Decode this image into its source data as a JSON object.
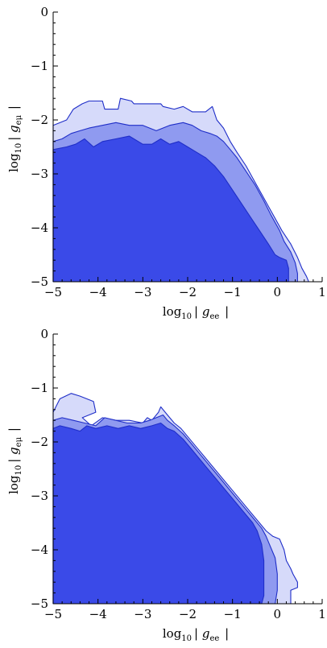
{
  "chart_data": [
    {
      "type": "area",
      "title": "",
      "xlabel": {
        "prefix": "log",
        "sub": "10",
        "var": "g",
        "var_sub": "ee"
      },
      "ylabel": {
        "prefix": "log",
        "sub": "10",
        "var": "g",
        "var_sub": "eμ"
      },
      "xlim": [
        -5,
        1
      ],
      "ylim": [
        -5,
        0
      ],
      "xticks": [
        -5,
        -4,
        -3,
        -2,
        -1,
        0,
        1
      ],
      "yticks": [
        0,
        -1,
        -2,
        -3,
        -4,
        -5
      ],
      "tick_labels_x": [
        "−5",
        "−4",
        "−3",
        "−2",
        "−1",
        "0",
        "1"
      ],
      "tick_labels_y": [
        "0",
        "−1",
        "−2",
        "−3",
        "−4",
        "−5"
      ],
      "colors": {
        "outer": "#d6dafa",
        "middle": "#8f9af0",
        "inner": "#3a4ae8",
        "edge": "#1f2ec8"
      },
      "series": [
        {
          "level": "outer",
          "points": [
            [
              -5,
              -5
            ],
            [
              -5,
              -2.1
            ],
            [
              -4.7,
              -2.0
            ],
            [
              -4.55,
              -1.8
            ],
            [
              -4.35,
              -1.7
            ],
            [
              -4.2,
              -1.65
            ],
            [
              -3.9,
              -1.65
            ],
            [
              -3.85,
              -1.8
            ],
            [
              -3.55,
              -1.8
            ],
            [
              -3.5,
              -1.6
            ],
            [
              -3.25,
              -1.65
            ],
            [
              -3.2,
              -1.7
            ],
            [
              -2.6,
              -1.7
            ],
            [
              -2.55,
              -1.75
            ],
            [
              -2.3,
              -1.8
            ],
            [
              -2.1,
              -1.75
            ],
            [
              -1.9,
              -1.85
            ],
            [
              -1.6,
              -1.85
            ],
            [
              -1.45,
              -1.75
            ],
            [
              -1.35,
              -2.0
            ],
            [
              -1.2,
              -2.15
            ],
            [
              -1.05,
              -2.4
            ],
            [
              -0.9,
              -2.6
            ],
            [
              -0.7,
              -2.85
            ],
            [
              -0.5,
              -3.15
            ],
            [
              -0.3,
              -3.45
            ],
            [
              -0.1,
              -3.75
            ],
            [
              0.1,
              -4.05
            ],
            [
              0.3,
              -4.3
            ],
            [
              0.45,
              -4.55
            ],
            [
              0.55,
              -4.75
            ],
            [
              0.65,
              -4.9
            ],
            [
              0.7,
              -5
            ]
          ]
        },
        {
          "level": "middle",
          "points": [
            [
              -5,
              -5
            ],
            [
              -5,
              -2.4
            ],
            [
              -4.8,
              -2.35
            ],
            [
              -4.6,
              -2.25
            ],
            [
              -4.4,
              -2.2
            ],
            [
              -4.2,
              -2.15
            ],
            [
              -3.9,
              -2.1
            ],
            [
              -3.6,
              -2.05
            ],
            [
              -3.3,
              -2.1
            ],
            [
              -3.0,
              -2.1
            ],
            [
              -2.7,
              -2.2
            ],
            [
              -2.4,
              -2.1
            ],
            [
              -2.1,
              -2.05
            ],
            [
              -1.9,
              -2.1
            ],
            [
              -1.7,
              -2.2
            ],
            [
              -1.5,
              -2.25
            ],
            [
              -1.35,
              -2.3
            ],
            [
              -1.2,
              -2.4
            ],
            [
              -1.05,
              -2.55
            ],
            [
              -0.9,
              -2.7
            ],
            [
              -0.7,
              -2.95
            ],
            [
              -0.5,
              -3.2
            ],
            [
              -0.3,
              -3.5
            ],
            [
              -0.15,
              -3.75
            ],
            [
              0.05,
              -4.05
            ],
            [
              0.15,
              -4.25
            ],
            [
              0.3,
              -4.45
            ],
            [
              0.4,
              -4.65
            ],
            [
              0.45,
              -4.85
            ],
            [
              0.45,
              -5
            ]
          ]
        },
        {
          "level": "inner",
          "points": [
            [
              -5,
              -5
            ],
            [
              -5,
              -2.55
            ],
            [
              -4.7,
              -2.5
            ],
            [
              -4.5,
              -2.45
            ],
            [
              -4.3,
              -2.35
            ],
            [
              -4.1,
              -2.5
            ],
            [
              -3.9,
              -2.4
            ],
            [
              -3.6,
              -2.35
            ],
            [
              -3.3,
              -2.3
            ],
            [
              -3.0,
              -2.45
            ],
            [
              -2.8,
              -2.45
            ],
            [
              -2.6,
              -2.35
            ],
            [
              -2.4,
              -2.45
            ],
            [
              -2.2,
              -2.4
            ],
            [
              -2.0,
              -2.5
            ],
            [
              -1.8,
              -2.6
            ],
            [
              -1.6,
              -2.7
            ],
            [
              -1.4,
              -2.85
            ],
            [
              -1.2,
              -3.05
            ],
            [
              -1.0,
              -3.3
            ],
            [
              -0.8,
              -3.55
            ],
            [
              -0.6,
              -3.8
            ],
            [
              -0.4,
              -4.05
            ],
            [
              -0.2,
              -4.3
            ],
            [
              -0.05,
              -4.5
            ],
            [
              0.05,
              -4.55
            ],
            [
              0.2,
              -4.6
            ],
            [
              0.25,
              -4.75
            ],
            [
              0.25,
              -5
            ]
          ]
        }
      ]
    },
    {
      "type": "area",
      "title": "",
      "xlabel": {
        "prefix": "log",
        "sub": "10",
        "var": "g",
        "var_sub": "ee"
      },
      "ylabel": {
        "prefix": "log",
        "sub": "10",
        "var": "g",
        "var_sub": "eμ"
      },
      "xlim": [
        -5,
        1
      ],
      "ylim": [
        -5,
        0
      ],
      "xticks": [
        -5,
        -4,
        -3,
        -2,
        -1,
        0,
        1
      ],
      "yticks": [
        0,
        -1,
        -2,
        -3,
        -4,
        -5
      ],
      "tick_labels_x": [
        "−5",
        "−4",
        "−3",
        "−2",
        "−1",
        "0",
        "1"
      ],
      "tick_labels_y": [
        "0",
        "−1",
        "−2",
        "−3",
        "−4",
        "−5"
      ],
      "colors": {
        "outer": "#d6dafa",
        "middle": "#8f9af0",
        "inner": "#3a4ae8",
        "edge": "#1f2ec8"
      },
      "series": [
        {
          "level": "outer",
          "points": [
            [
              -5,
              -5
            ],
            [
              -5,
              -1.45
            ],
            [
              -4.85,
              -1.2
            ],
            [
              -4.6,
              -1.1
            ],
            [
              -4.4,
              -1.15
            ],
            [
              -4.1,
              -1.25
            ],
            [
              -4.05,
              -1.45
            ],
            [
              -4.35,
              -1.55
            ],
            [
              -4.15,
              -1.7
            ],
            [
              -3.9,
              -1.55
            ],
            [
              -3.6,
              -1.6
            ],
            [
              -3.3,
              -1.6
            ],
            [
              -3.0,
              -1.65
            ],
            [
              -2.9,
              -1.55
            ],
            [
              -2.8,
              -1.6
            ],
            [
              -2.65,
              -1.45
            ],
            [
              -2.6,
              -1.35
            ],
            [
              -2.45,
              -1.5
            ],
            [
              -2.3,
              -1.65
            ],
            [
              -2.15,
              -1.75
            ],
            [
              -2.0,
              -1.9
            ],
            [
              -1.8,
              -2.1
            ],
            [
              -1.6,
              -2.3
            ],
            [
              -1.4,
              -2.5
            ],
            [
              -1.2,
              -2.7
            ],
            [
              -1.0,
              -2.9
            ],
            [
              -0.8,
              -3.1
            ],
            [
              -0.6,
              -3.3
            ],
            [
              -0.4,
              -3.5
            ],
            [
              -0.25,
              -3.65
            ],
            [
              -0.1,
              -3.75
            ],
            [
              0.05,
              -3.8
            ],
            [
              0.15,
              -4.0
            ],
            [
              0.2,
              -4.2
            ],
            [
              0.3,
              -4.35
            ],
            [
              0.35,
              -4.45
            ],
            [
              0.45,
              -4.6
            ],
            [
              0.45,
              -4.7
            ],
            [
              0.3,
              -4.75
            ],
            [
              0.3,
              -5
            ]
          ]
        },
        {
          "level": "middle",
          "points": [
            [
              -5,
              -5
            ],
            [
              -5,
              -1.6
            ],
            [
              -4.8,
              -1.55
            ],
            [
              -4.55,
              -1.6
            ],
            [
              -4.3,
              -1.65
            ],
            [
              -4.05,
              -1.7
            ],
            [
              -3.85,
              -1.55
            ],
            [
              -3.6,
              -1.6
            ],
            [
              -3.35,
              -1.65
            ],
            [
              -3.05,
              -1.65
            ],
            [
              -2.85,
              -1.6
            ],
            [
              -2.7,
              -1.55
            ],
            [
              -2.55,
              -1.5
            ],
            [
              -2.45,
              -1.6
            ],
            [
              -2.3,
              -1.7
            ],
            [
              -2.1,
              -1.85
            ],
            [
              -1.9,
              -2.05
            ],
            [
              -1.7,
              -2.25
            ],
            [
              -1.5,
              -2.45
            ],
            [
              -1.3,
              -2.65
            ],
            [
              -1.1,
              -2.85
            ],
            [
              -0.9,
              -3.05
            ],
            [
              -0.7,
              -3.25
            ],
            [
              -0.5,
              -3.45
            ],
            [
              -0.35,
              -3.6
            ],
            [
              -0.25,
              -3.75
            ],
            [
              -0.15,
              -3.95
            ],
            [
              -0.05,
              -4.15
            ],
            [
              0.0,
              -4.45
            ],
            [
              0.0,
              -4.75
            ],
            [
              -0.05,
              -5
            ]
          ]
        },
        {
          "level": "inner",
          "points": [
            [
              -5,
              -5
            ],
            [
              -5,
              -1.75
            ],
            [
              -4.85,
              -1.7
            ],
            [
              -4.6,
              -1.75
            ],
            [
              -4.4,
              -1.8
            ],
            [
              -4.25,
              -1.7
            ],
            [
              -4.05,
              -1.75
            ],
            [
              -3.8,
              -1.7
            ],
            [
              -3.55,
              -1.75
            ],
            [
              -3.3,
              -1.7
            ],
            [
              -3.05,
              -1.75
            ],
            [
              -2.8,
              -1.7
            ],
            [
              -2.6,
              -1.65
            ],
            [
              -2.45,
              -1.75
            ],
            [
              -2.3,
              -1.8
            ],
            [
              -2.1,
              -1.95
            ],
            [
              -1.9,
              -2.15
            ],
            [
              -1.7,
              -2.35
            ],
            [
              -1.5,
              -2.55
            ],
            [
              -1.3,
              -2.75
            ],
            [
              -1.1,
              -2.95
            ],
            [
              -0.9,
              -3.15
            ],
            [
              -0.7,
              -3.35
            ],
            [
              -0.55,
              -3.5
            ],
            [
              -0.45,
              -3.65
            ],
            [
              -0.35,
              -3.9
            ],
            [
              -0.3,
              -4.2
            ],
            [
              -0.3,
              -4.55
            ],
            [
              -0.3,
              -4.85
            ],
            [
              -0.35,
              -5
            ]
          ]
        }
      ]
    }
  ]
}
